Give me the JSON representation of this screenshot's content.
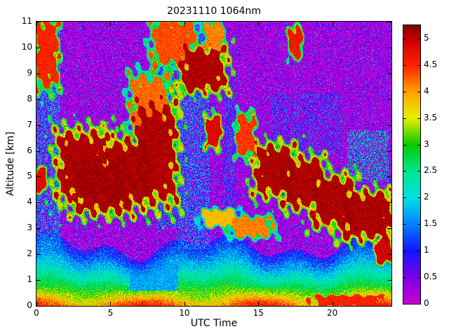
{
  "chart_data": {
    "type": "heatmap",
    "title": "20231110 1064nm",
    "xlabel": "UTC Time",
    "ylabel": "Altitude [km]",
    "xlim": [
      0,
      24
    ],
    "ylim": [
      0,
      11
    ],
    "xticks": [
      0,
      5,
      10,
      15,
      20
    ],
    "yticks": [
      0,
      1,
      2,
      3,
      4,
      5,
      6,
      7,
      8,
      9,
      10,
      11
    ],
    "grid": false,
    "legend": "colorbar-right",
    "colorbar": {
      "min": 0,
      "max": 5.25,
      "ticks": [
        0,
        0.5,
        1,
        1.5,
        2,
        2.5,
        3,
        3.5,
        4,
        4.5,
        5
      ]
    },
    "colormap": [
      {
        "v": 0.0,
        "c": "#c800d2"
      },
      {
        "v": 0.5,
        "c": "#7800e6"
      },
      {
        "v": 1.0,
        "c": "#1414ff"
      },
      {
        "v": 1.5,
        "c": "#0082ff"
      },
      {
        "v": 2.0,
        "c": "#00e1e1"
      },
      {
        "v": 2.5,
        "c": "#00e68c"
      },
      {
        "v": 3.0,
        "c": "#0ac800"
      },
      {
        "v": 3.5,
        "c": "#e6f000"
      },
      {
        "v": 4.0,
        "c": "#ffa000"
      },
      {
        "v": 4.5,
        "c": "#ff1e00"
      },
      {
        "v": 5.0,
        "c": "#c80000"
      },
      {
        "v": 5.25,
        "c": "#7d0000"
      }
    ],
    "seed": 1337,
    "noise": {
      "purple_max": 1.05,
      "speck_prob": 0.05
    },
    "boundary_layer": {
      "h_base": 2.3,
      "h_amp": 0.35,
      "h_amp2": 0.25,
      "surface_max": 4.6
    },
    "bl_gap": {
      "t0": 6.3,
      "t1": 9.6,
      "z0": 0.6,
      "z1": 1.7,
      "v": 1.4
    },
    "speckle_regions": [
      {
        "t0": 0.0,
        "t1": 1.6,
        "z0": 2.2,
        "z1": 11.0,
        "amp": 2.3,
        "dens": 0.55
      },
      {
        "t0": 8.0,
        "t1": 9.7,
        "z0": 3.0,
        "z1": 9.4,
        "amp": 2.0,
        "dens": 0.5
      },
      {
        "t0": 9.6,
        "t1": 11.7,
        "z0": 2.2,
        "z1": 11.0,
        "amp": 2.2,
        "dens": 0.55
      },
      {
        "t0": 12.6,
        "t1": 13.4,
        "z0": 3.6,
        "z1": 8.6,
        "amp": 1.8,
        "dens": 0.4
      },
      {
        "t0": 21.0,
        "t1": 23.8,
        "z0": 4.8,
        "z1": 6.8,
        "amp": 2.9,
        "dens": 0.5
      },
      {
        "t0": 15.9,
        "t1": 20.6,
        "z0": 5.8,
        "z1": 8.2,
        "amp": 1.8,
        "dens": 0.3
      }
    ],
    "clouds": [
      {
        "t0": 0.0,
        "t1": 1.4,
        "z0": 8.6,
        "z1": 11.0,
        "v": 4.7
      },
      {
        "t0": 0.0,
        "t1": 0.6,
        "z0": 4.5,
        "z1": 5.3,
        "v": 5.0
      },
      {
        "t0": 1.6,
        "t1": 4.6,
        "z0": 4.3,
        "z1": 6.6,
        "v": 5.25
      },
      {
        "t0": 2.8,
        "t1": 6.2,
        "z0": 3.7,
        "z1": 5.6,
        "v": 5.25
      },
      {
        "t0": 4.8,
        "t1": 7.6,
        "z0": 4.0,
        "z1": 6.3,
        "v": 5.25
      },
      {
        "t0": 6.8,
        "t1": 9.3,
        "z0": 4.2,
        "z1": 7.6,
        "v": 5.25
      },
      {
        "t0": 6.5,
        "t1": 8.8,
        "z0": 6.8,
        "z1": 8.8,
        "v": 4.4
      },
      {
        "t0": 8.0,
        "t1": 10.6,
        "z0": 9.4,
        "z1": 11.0,
        "v": 4.5
      },
      {
        "t0": 9.9,
        "t1": 12.6,
        "z0": 8.4,
        "z1": 9.9,
        "v": 5.25
      },
      {
        "t0": 11.4,
        "t1": 12.6,
        "z0": 9.9,
        "z1": 10.9,
        "v": 4.3
      },
      {
        "t0": 11.5,
        "t1": 12.4,
        "z0": 6.2,
        "z1": 7.3,
        "v": 5.0
      },
      {
        "t0": 13.6,
        "t1": 14.7,
        "z0": 5.9,
        "z1": 7.3,
        "v": 4.6
      },
      {
        "t0": 11.3,
        "t1": 13.5,
        "z0": 3.1,
        "z1": 3.7,
        "v": 4.0
      },
      {
        "t0": 13.3,
        "t1": 15.8,
        "z0": 2.7,
        "z1": 3.4,
        "v": 4.3
      },
      {
        "t0": 14.9,
        "t1": 17.3,
        "z0": 4.4,
        "z1": 6.1,
        "v": 5.25
      },
      {
        "t0": 16.8,
        "t1": 19.2,
        "z0": 3.9,
        "z1": 5.6,
        "v": 5.25
      },
      {
        "t0": 18.8,
        "t1": 21.3,
        "z0": 3.2,
        "z1": 4.9,
        "v": 5.25
      },
      {
        "t0": 20.8,
        "t1": 24.0,
        "z0": 2.7,
        "z1": 4.3,
        "v": 5.25
      },
      {
        "t0": 17.1,
        "t1": 17.9,
        "z0": 9.7,
        "z1": 10.7,
        "v": 4.8
      },
      {
        "t0": 23.0,
        "t1": 24.0,
        "z0": 1.7,
        "z1": 2.6,
        "v": 5.1
      },
      {
        "t0": 18.8,
        "t1": 23.2,
        "z0": 0.0,
        "z1": 0.4,
        "v": 4.7
      }
    ]
  }
}
